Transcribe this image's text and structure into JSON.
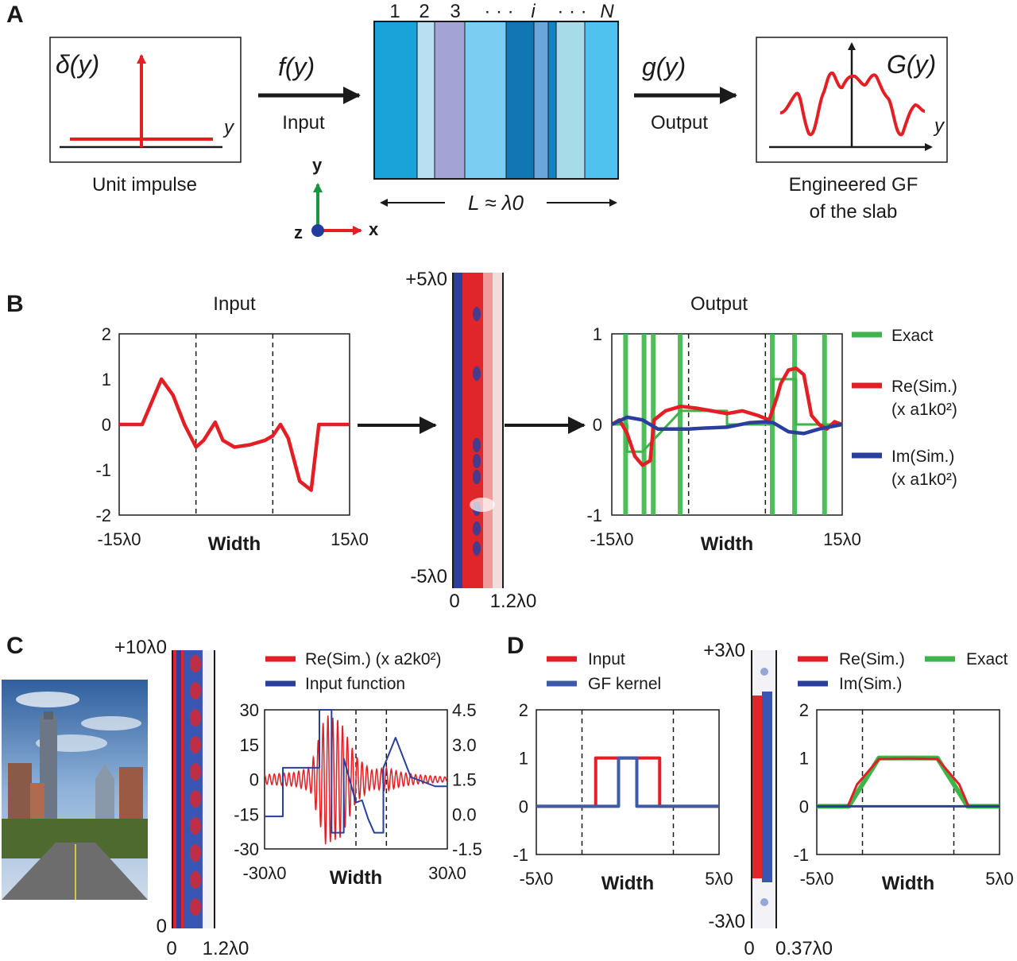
{
  "panel_letters": [
    "A",
    "B",
    "C",
    "D"
  ],
  "panelA": {
    "impulse_symbol": "δ(y)",
    "impulse_axis": "y",
    "impulse_caption": "Unit impulse",
    "input_symbol": "f(y)",
    "input_label": "Input",
    "layer_labels": [
      "1",
      "2",
      "3",
      "· · ·",
      "i",
      "· · ·",
      "N"
    ],
    "length_label": "L ≈ λ0",
    "output_symbol": "g(y)",
    "output_label": "Output",
    "gf_symbol": "G(y)",
    "gf_axis": "y",
    "gf_caption_1": "Engineered GF",
    "gf_caption_2": "of the slab",
    "axes": {
      "y": "y",
      "x": "x",
      "z": "z"
    },
    "axis_colors": {
      "x": "#e31e24",
      "y": "#1a9641",
      "z": "#1f3c9e"
    },
    "layer_colors": [
      "#1aa3d8",
      "#b8dff2",
      "#a3a3d6",
      "#7ccdf2",
      "#1176b3",
      "#6ba6da",
      "#1681c3",
      "#a8dbe8",
      "#4fc2f0"
    ]
  },
  "panelB": {
    "input_title": "Input",
    "output_title": "Output",
    "slab_top": "+5λ0",
    "slab_bottom": "-5λ0",
    "slab_x0": "0",
    "slab_x1": "1.2λ0",
    "legend": [
      "Exact",
      "Re(Sim.)",
      "(x a1k0²)",
      "Im(Sim.)",
      "(x a1k0²)"
    ]
  },
  "panelC": {
    "slab_top": "+10λ0",
    "slab_bottom": "0",
    "slab_x0": "0",
    "slab_x1": "1.2λ0",
    "legend": [
      "Re(Sim.) (x a2k0²)",
      "Input function"
    ]
  },
  "panelD": {
    "legend_left": [
      "Input",
      "GF kernel"
    ],
    "slab_top": "+3λ0",
    "slab_bottom": "-3λ0",
    "slab_x0": "0",
    "slab_x1": "0.37λ0",
    "legend_right": [
      "Re(Sim.)",
      "Exact",
      "Im(Sim.)"
    ]
  },
  "colors": {
    "red": "#e31e24",
    "blue": "#2a3f9d",
    "green": "#3db54a",
    "steel": "#3d5ba8"
  },
  "chart_data": [
    {
      "type": "line",
      "title": "Input",
      "xlabel": "Width",
      "xlim": [
        -15,
        15
      ],
      "x_tick_labels": [
        "-15λ0",
        "15λ0"
      ],
      "ylim": [
        -2,
        2
      ],
      "y_ticks": [
        "2",
        "1",
        "0",
        "-1",
        "-2"
      ],
      "dashed_x": [
        -5,
        5
      ],
      "series": [
        {
          "color": "#e31e24",
          "x": [
            -15,
            -12,
            -10.5,
            -9.5,
            -8,
            -6.5,
            -5,
            -4,
            -2.5,
            -1.5,
            0,
            2,
            4,
            5,
            6,
            7,
            8.5,
            10,
            11,
            13,
            15
          ],
          "y": [
            0,
            0,
            0.6,
            1.0,
            0.65,
            0,
            -0.5,
            -0.35,
            0.05,
            -0.35,
            -0.5,
            -0.45,
            -0.35,
            -0.25,
            0,
            -0.3,
            -1.25,
            -1.45,
            0,
            0,
            0
          ]
        }
      ]
    },
    {
      "type": "line",
      "title": "Output",
      "xlabel": "Width",
      "xlim": [
        -15,
        15
      ],
      "x_tick_labels": [
        "-15λ0",
        "15λ0"
      ],
      "ylim": [
        -1,
        1
      ],
      "y_ticks": [
        "1",
        "0",
        "-1"
      ],
      "dashed_x": [
        -5,
        5
      ],
      "series": [
        {
          "name": "Exact",
          "color": "#3db54a",
          "x": [
            -15,
            -13,
            -13,
            -11,
            -11,
            -6,
            -6,
            0,
            0,
            6,
            6,
            9,
            9,
            15
          ],
          "y": [
            0,
            0,
            -0.3,
            -0.3,
            -0.3,
            0.15,
            0.15,
            0.15,
            0,
            0,
            0.5,
            0.5,
            0,
            0
          ]
        },
        {
          "name": "Re(Sim.)",
          "color": "#e31e24",
          "x": [
            -15,
            -14,
            -13,
            -12,
            -11,
            -10,
            -9.5,
            -8,
            -6,
            -4,
            -2,
            0,
            2,
            4,
            5.5,
            6.5,
            7,
            8,
            9,
            10,
            11,
            12,
            13,
            14,
            15
          ],
          "y": [
            0,
            0.05,
            -0.1,
            -0.35,
            -0.45,
            -0.4,
            0.05,
            0.15,
            0.2,
            0.18,
            0.15,
            0.12,
            0.15,
            0.1,
            0.05,
            0.3,
            0.45,
            0.6,
            0.62,
            0.55,
            0.1,
            0.0,
            -0.05,
            0.03,
            0
          ]
        },
        {
          "name": "Im(Sim.)",
          "color": "#2a3f9d",
          "x": [
            -15,
            -13,
            -11,
            -9,
            -7,
            -5,
            -3,
            0,
            3,
            5,
            6,
            8,
            10,
            12,
            15
          ],
          "y": [
            0,
            0.08,
            0.05,
            -0.05,
            -0.05,
            -0.05,
            -0.04,
            -0.03,
            0.02,
            0.03,
            0.02,
            -0.08,
            -0.1,
            -0.05,
            0
          ]
        }
      ],
      "spike_x": [
        -13.2,
        -10.8,
        -9.6,
        -6.1,
        5.9,
        8.8,
        12.7
      ]
    },
    {
      "type": "line",
      "xlabel": "Width",
      "xlim": [
        -30,
        30
      ],
      "x_tick_labels": [
        "-30λ0",
        "30λ0"
      ],
      "y_left": {
        "lim": [
          -30,
          30
        ],
        "ticks": [
          "30",
          "15",
          "0",
          "-15",
          "-30"
        ],
        "color": "#e31e24"
      },
      "y_right": {
        "lim": [
          -1.5,
          4.5
        ],
        "ticks": [
          "4.5",
          "3.0",
          "1.5",
          "0.0",
          "-1.5"
        ],
        "color": "#3d5ba8"
      },
      "dashed_x": [
        0,
        10
      ],
      "series": [
        {
          "name": "Input function",
          "axis": "right",
          "color": "#2a3f9d",
          "x": [
            -30,
            -24,
            -24,
            -12,
            -12,
            -8,
            -8,
            -4,
            -4,
            0,
            2,
            4,
            6,
            9,
            9,
            13,
            18,
            26,
            30
          ],
          "y": [
            -0.1,
            -0.1,
            2.0,
            2.0,
            4.5,
            4.5,
            -0.8,
            -0.8,
            2.4,
            0.5,
            0.6,
            -0.2,
            -0.8,
            -0.8,
            2.0,
            3.3,
            1.6,
            1.2,
            1.2
          ]
        }
      ],
      "oscillation": {
        "name": "Re(Sim.) (x a2k0²)",
        "axis": "left",
        "color": "#e31e24",
        "x_range": [
          -30,
          30
        ],
        "period": 1.6,
        "envelope_x": [
          -30,
          -20,
          -15,
          -10,
          -5,
          0,
          5,
          10,
          15,
          20,
          30
        ],
        "envelope_y": [
          2,
          3,
          5,
          28,
          25,
          10,
          4,
          5,
          3,
          2,
          1
        ]
      }
    },
    {
      "type": "line",
      "xlabel": "Width",
      "xlim": [
        -5,
        5
      ],
      "x_tick_labels": [
        "-5λ0",
        "5λ0"
      ],
      "ylim": [
        -1,
        2
      ],
      "y_ticks": [
        "2",
        "1",
        "0",
        "-1"
      ],
      "dashed_x": [
        -2.5,
        2.5
      ],
      "series": [
        {
          "name": "Input",
          "color": "#e31e24",
          "x": [
            -5,
            -1.75,
            -1.75,
            1.75,
            1.75,
            5
          ],
          "y": [
            0,
            0,
            1,
            1,
            0,
            0
          ]
        },
        {
          "name": "GF kernel",
          "color": "#3d5ba8",
          "x": [
            -5,
            -0.5,
            -0.5,
            0.5,
            0.5,
            5
          ],
          "y": [
            0,
            0,
            1,
            1,
            0,
            0
          ]
        }
      ]
    },
    {
      "type": "line",
      "xlabel": "Width",
      "xlim": [
        -5,
        5
      ],
      "x_tick_labels": [
        "-5λ0",
        "5λ0"
      ],
      "ylim": [
        -1,
        2
      ],
      "y_ticks": [
        "2",
        "1",
        "0",
        "-1"
      ],
      "dashed_x": [
        -2.5,
        2.5
      ],
      "series": [
        {
          "name": "Exact",
          "color": "#3db54a",
          "x": [
            -5,
            -3.25,
            -1.6,
            1.6,
            3.25,
            5
          ],
          "y": [
            0,
            0,
            1,
            1,
            0,
            0
          ]
        },
        {
          "name": "Re(Sim.)",
          "color": "#e31e24",
          "x": [
            -5,
            -3.3,
            -2.8,
            -1.6,
            0,
            1.6,
            2.8,
            3.3,
            5
          ],
          "y": [
            0,
            0,
            0.45,
            0.98,
            0.99,
            0.98,
            0.45,
            0,
            0
          ]
        },
        {
          "name": "Im(Sim.)",
          "color": "#2a3f9d",
          "x": [
            -5,
            5
          ],
          "y": [
            0,
            0
          ]
        }
      ]
    }
  ]
}
